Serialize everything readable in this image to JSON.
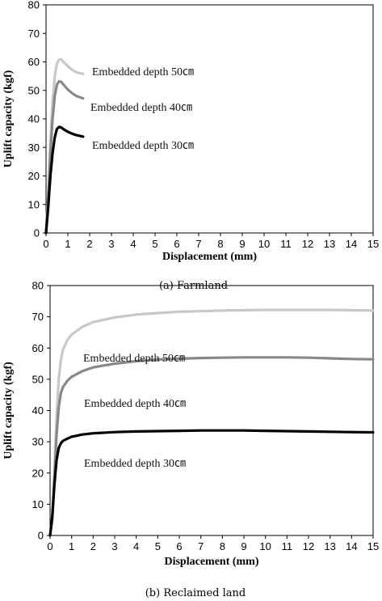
{
  "chart_data": [
    {
      "type": "line",
      "caption": "(a)  Farmland",
      "xlabel": "Displacement (mm)",
      "ylabel": "Uplift capacity (kgf)",
      "xlim": [
        0,
        15
      ],
      "ylim": [
        0,
        80
      ],
      "xticks": [
        0,
        1,
        2,
        3,
        4,
        5,
        6,
        7,
        8,
        9,
        10,
        11,
        12,
        13,
        14,
        15
      ],
      "yticks": [
        0,
        10,
        20,
        30,
        40,
        50,
        60,
        70,
        80
      ],
      "grid": false,
      "series": [
        {
          "name": "Embedded depth 50㎝",
          "color": "#c8c8c8",
          "x": [
            0,
            0.1,
            0.2,
            0.3,
            0.4,
            0.5,
            0.6,
            0.7,
            0.8,
            1.0,
            1.2,
            1.4,
            1.7
          ],
          "y": [
            0,
            14,
            32,
            46,
            55,
            59.5,
            60.8,
            60.8,
            60,
            58.5,
            57.2,
            56.3,
            55.8
          ]
        },
        {
          "name": "Embedded depth 40㎝",
          "color": "#888888",
          "x": [
            0,
            0.1,
            0.2,
            0.3,
            0.4,
            0.5,
            0.6,
            0.7,
            0.8,
            1.0,
            1.2,
            1.4,
            1.7
          ],
          "y": [
            0,
            12,
            28,
            40,
            48,
            52,
            53.2,
            53,
            52,
            50.3,
            49,
            48,
            47.2
          ]
        },
        {
          "name": "Embedded depth 30㎝",
          "color": "#000000",
          "x": [
            0,
            0.1,
            0.2,
            0.3,
            0.4,
            0.5,
            0.6,
            0.7,
            0.8,
            1.0,
            1.2,
            1.4,
            1.7
          ],
          "y": [
            0,
            9,
            20,
            28,
            33.5,
            36.5,
            37.2,
            37,
            36.4,
            35.5,
            34.8,
            34.3,
            33.8
          ]
        }
      ]
    },
    {
      "type": "line",
      "caption": "(b)  Reclaimed land",
      "xlabel": "Displacement (mm)",
      "ylabel": "Uplift capacity (kgf)",
      "xlim": [
        0,
        15
      ],
      "ylim": [
        0,
        80
      ],
      "xticks": [
        0,
        1,
        2,
        3,
        4,
        5,
        6,
        7,
        8,
        9,
        10,
        11,
        12,
        13,
        14,
        15
      ],
      "yticks": [
        0,
        10,
        20,
        30,
        40,
        50,
        60,
        70,
        80
      ],
      "grid": false,
      "series": [
        {
          "name": "Embedded depth 50㎝",
          "color": "#c8c8c8",
          "x": [
            0,
            0.1,
            0.2,
            0.3,
            0.4,
            0.5,
            0.6,
            0.8,
            1.0,
            1.5,
            2,
            3,
            4,
            5,
            6,
            7,
            8,
            9,
            10,
            11,
            12,
            13,
            14,
            15
          ],
          "y": [
            0,
            5,
            20,
            38,
            50,
            56,
            59.5,
            62.5,
            64.3,
            66.8,
            68.3,
            69.8,
            70.7,
            71.2,
            71.6,
            71.8,
            72,
            72.1,
            72.2,
            72.2,
            72.2,
            72.2,
            72.1,
            72
          ]
        },
        {
          "name": "Embedded depth 40㎝",
          "color": "#888888",
          "x": [
            0,
            0.1,
            0.2,
            0.3,
            0.4,
            0.5,
            0.6,
            0.8,
            1.0,
            1.5,
            2,
            3,
            4,
            5,
            6,
            7,
            8,
            9,
            10,
            11,
            12,
            13,
            14,
            15
          ],
          "y": [
            0,
            5,
            18,
            32,
            41,
            45.5,
            47.5,
            49.5,
            50.8,
            52.6,
            53.8,
            55,
            55.8,
            56.3,
            56.6,
            56.8,
            56.9,
            57,
            57,
            57,
            56.9,
            56.7,
            56.5,
            56.4
          ]
        },
        {
          "name": "Embedded depth 30㎝",
          "color": "#000000",
          "x": [
            0,
            0.1,
            0.2,
            0.3,
            0.4,
            0.5,
            0.6,
            0.8,
            1.0,
            1.5,
            2,
            3,
            4,
            5,
            6,
            7,
            8,
            9,
            10,
            11,
            12,
            13,
            14,
            15
          ],
          "y": [
            0,
            6,
            16,
            24,
            28,
            29.5,
            30.3,
            31,
            31.6,
            32.3,
            32.7,
            33.1,
            33.3,
            33.4,
            33.5,
            33.6,
            33.6,
            33.6,
            33.5,
            33.4,
            33.3,
            33.2,
            33.1,
            33
          ]
        }
      ]
    }
  ]
}
